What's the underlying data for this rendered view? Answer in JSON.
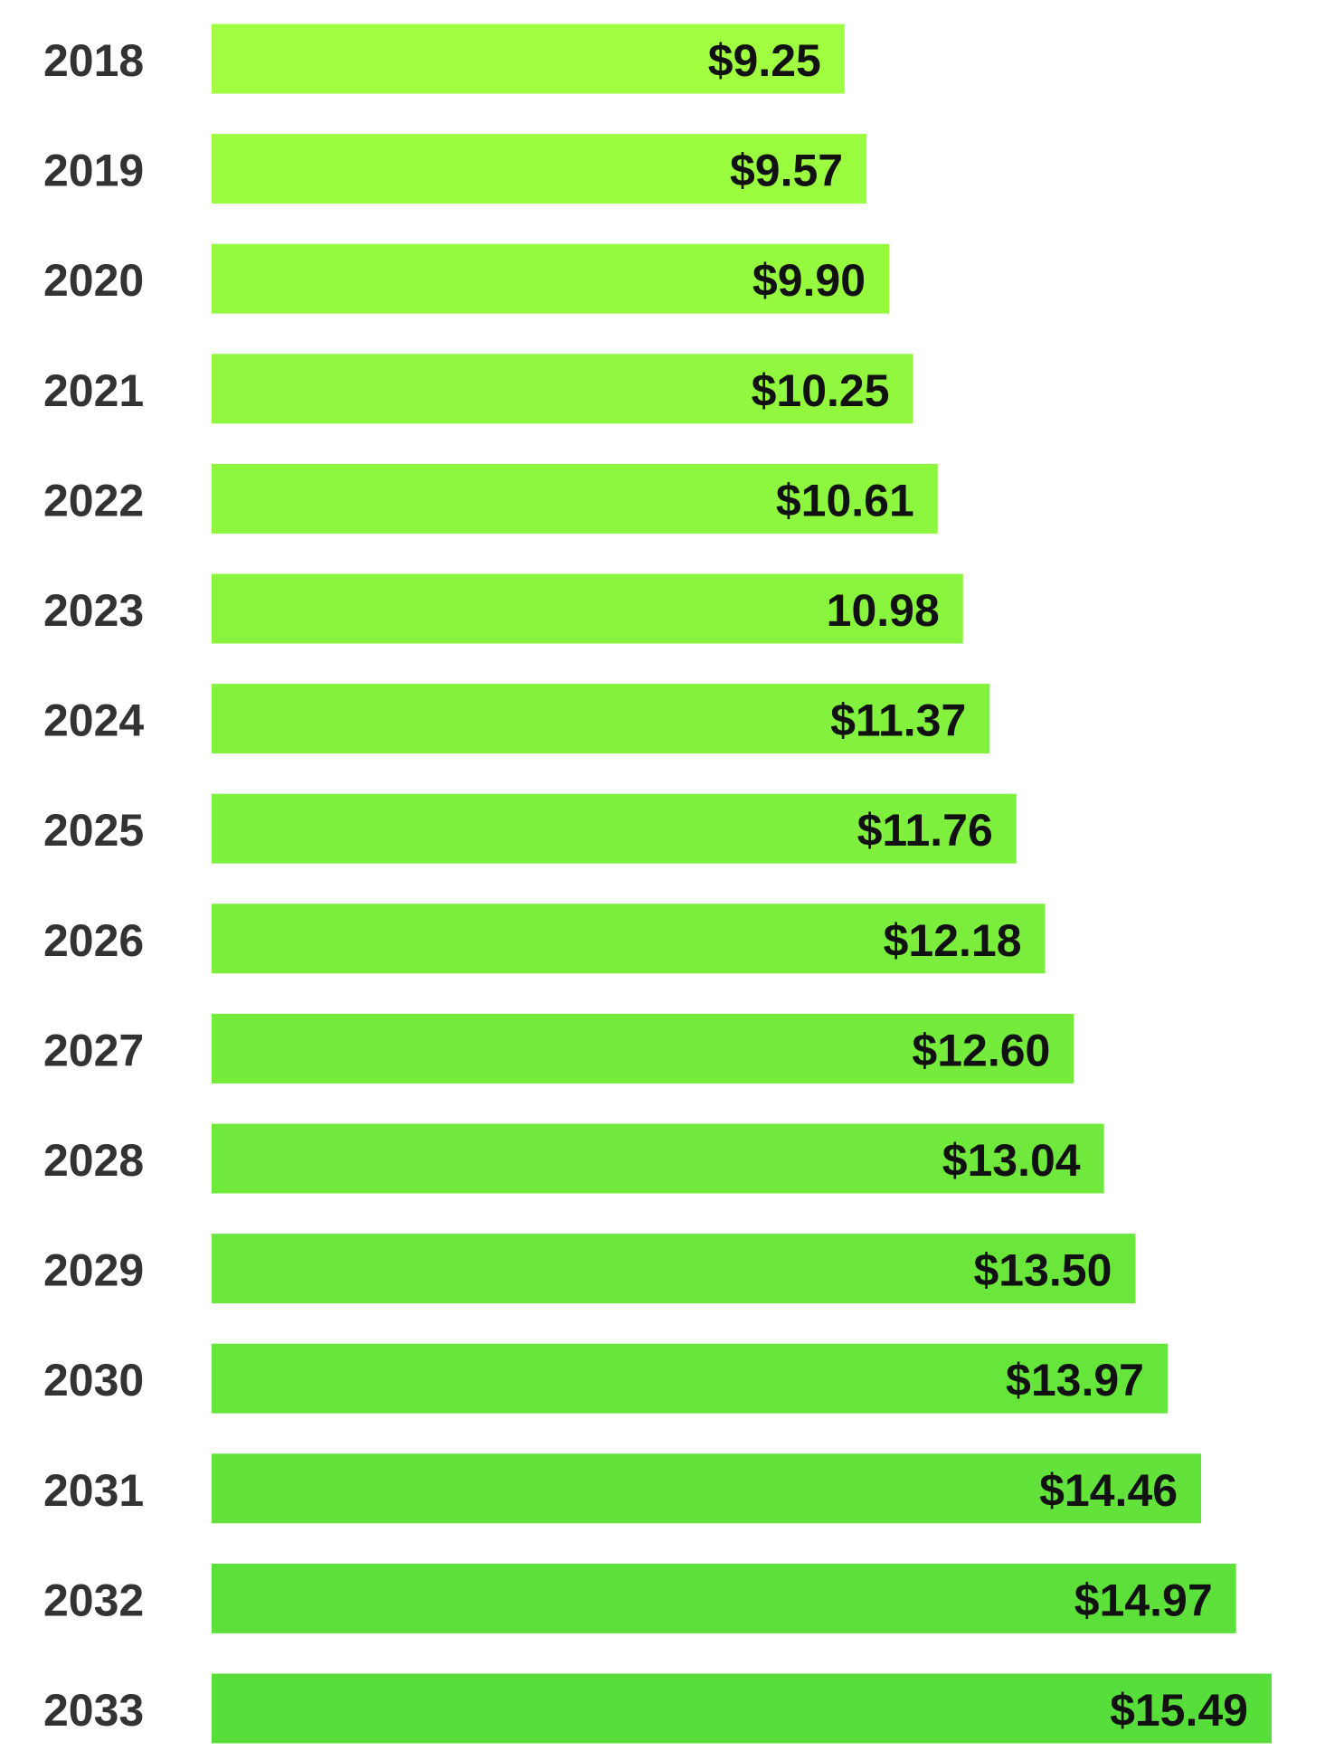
{
  "chart_data": {
    "type": "bar",
    "orientation": "horizontal",
    "categories": [
      "2018",
      "2019",
      "2020",
      "2021",
      "2022",
      "2023",
      "2024",
      "2025",
      "2026",
      "2027",
      "2028",
      "2029",
      "2030",
      "2031",
      "2032",
      "2033"
    ],
    "values": [
      9.25,
      9.57,
      9.9,
      10.25,
      10.61,
      10.98,
      11.37,
      11.76,
      12.18,
      12.6,
      13.04,
      13.5,
      13.97,
      14.46,
      14.97,
      15.49
    ],
    "value_labels": [
      "$9.25",
      "$9.57",
      "$9.90",
      "$10.25",
      "$10.61",
      "10.98",
      "$11.37",
      "$11.76",
      "$12.18",
      "$12.60",
      "$13.04",
      "$13.50",
      "$13.97",
      "$14.46",
      "$14.97",
      "$15.49"
    ],
    "colors": [
      "#a0ff40",
      "#9bfd40",
      "#96fb3f",
      "#92f83f",
      "#8df63e",
      "#88f43e",
      "#83f23e",
      "#7ef03d",
      "#7aed3d",
      "#75eb3c",
      "#70e93c",
      "#6be73c",
      "#66e53b",
      "#62e23b",
      "#5de03a",
      "#58de3a"
    ]
  }
}
